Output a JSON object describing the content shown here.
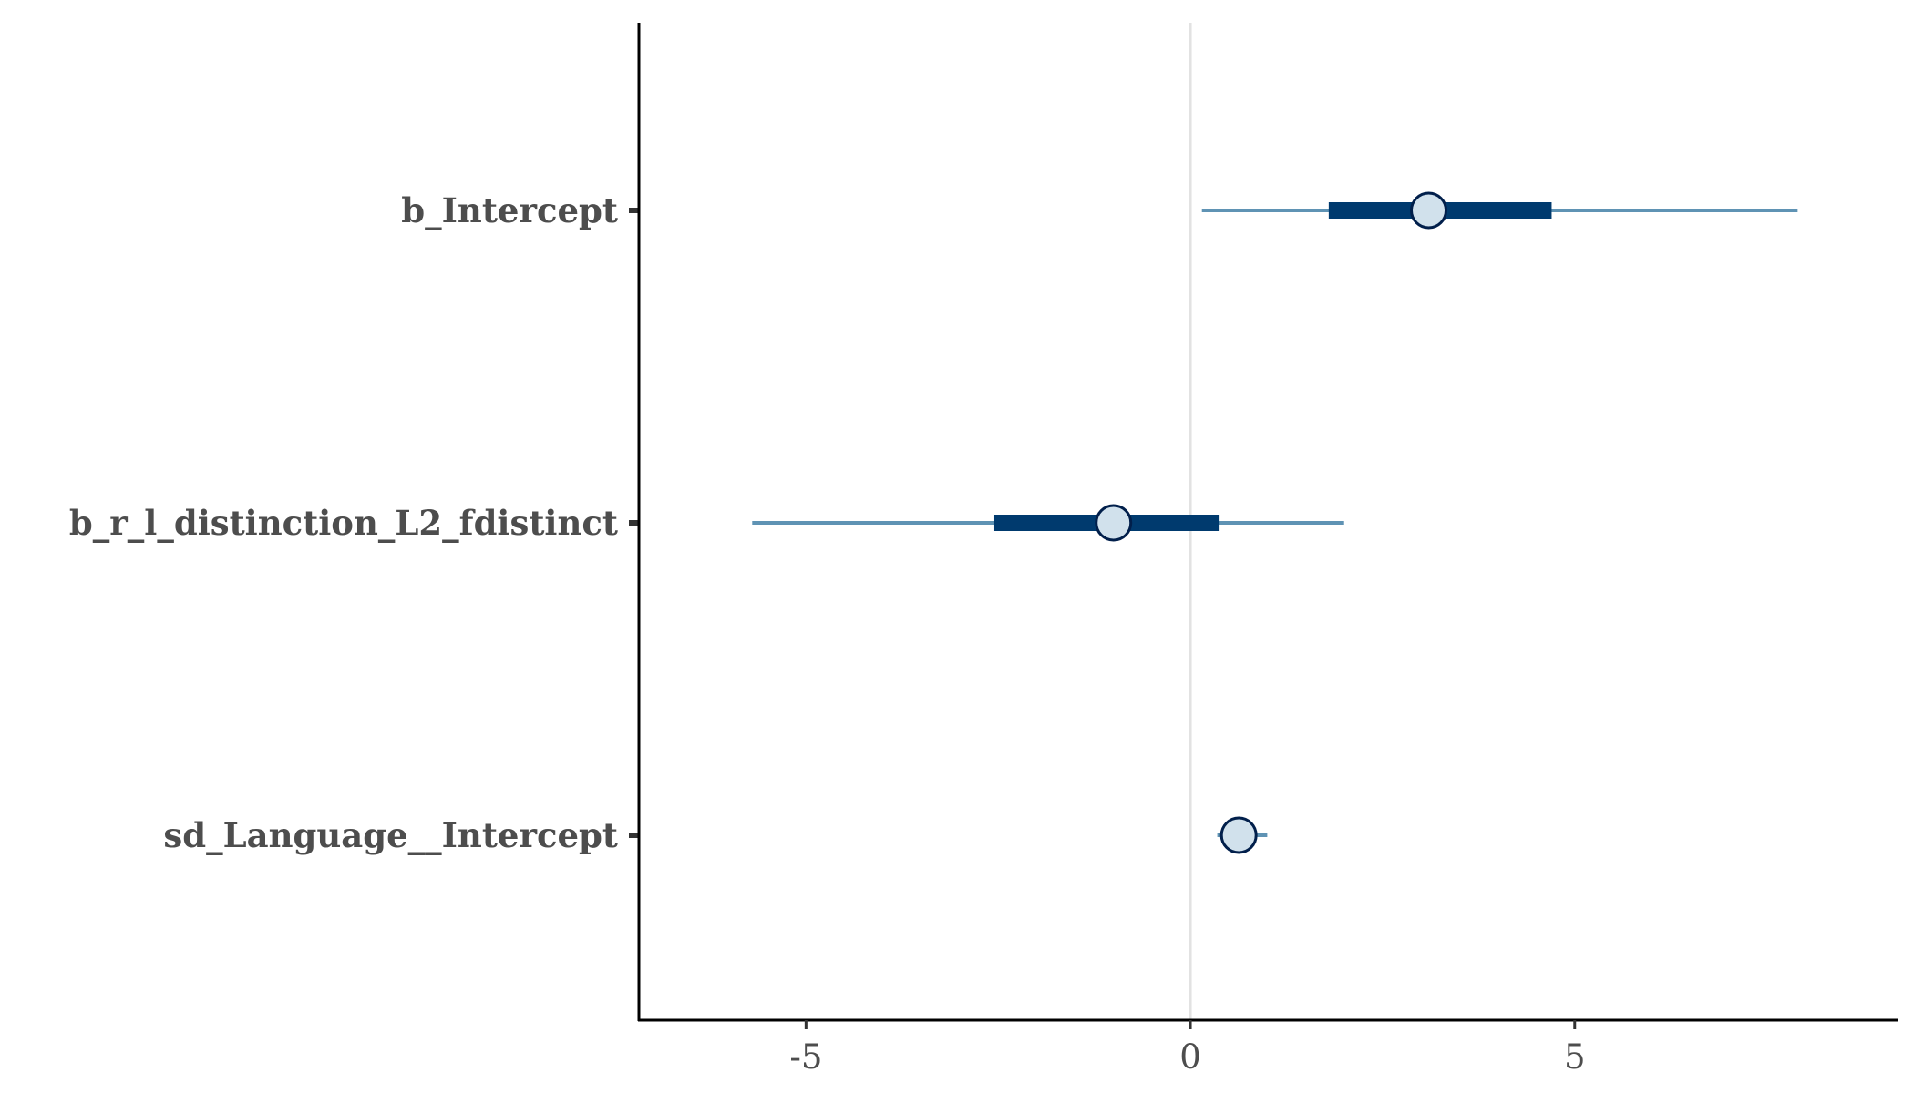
{
  "chart_data": {
    "type": "interval",
    "parameters": [
      "b_Intercept",
      "b_r_l_distinction_L2_fdistinct",
      "sd_Language__Intercept"
    ],
    "estimates": [
      3.1,
      -1.0,
      0.63
    ],
    "inner_intervals": [
      [
        1.8,
        4.7
      ],
      [
        -2.55,
        0.38
      ],
      [
        0.55,
        0.72
      ]
    ],
    "outer_intervals": [
      [
        0.15,
        7.9
      ],
      [
        -5.7,
        2.0
      ],
      [
        0.35,
        1.0
      ]
    ],
    "x_ticks": [
      -5,
      0,
      5
    ],
    "x_tick_labels": [
      "-5",
      "0",
      "5"
    ],
    "xlim": [
      -7.15,
      9.2
    ],
    "reference_line": 0,
    "grid": false,
    "colors": {
      "outer_line": "#5f93b4",
      "inner_bar": "#003a6e",
      "point_fill": "#d1e1ec",
      "point_stroke": "#011f4b",
      "reference_line": "#e2e2e2",
      "axis": "#000000",
      "tick_label": "#4d4d4d"
    }
  }
}
